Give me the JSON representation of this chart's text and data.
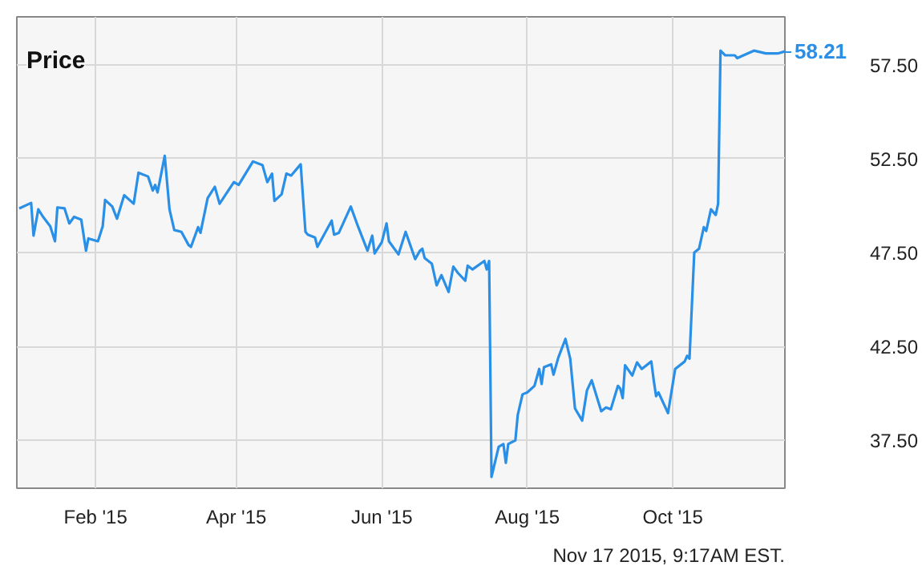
{
  "chart_data": {
    "type": "line",
    "title": "Price",
    "x": [
      "2014-12-31",
      "2015-01-05",
      "2015-01-06",
      "2015-01-08",
      "2015-01-10",
      "2015-01-13",
      "2015-01-15",
      "2015-01-16",
      "2015-01-19",
      "2015-01-21",
      "2015-01-23",
      "2015-01-26",
      "2015-01-28",
      "2015-01-29",
      "2015-02-02",
      "2015-02-04",
      "2015-02-05",
      "2015-02-08",
      "2015-02-10",
      "2015-02-13",
      "2015-02-17",
      "2015-02-19",
      "2015-02-23",
      "2015-02-25",
      "2015-02-26",
      "2015-02-27",
      "2015-03-02",
      "2015-03-04",
      "2015-03-06",
      "2015-03-09",
      "2015-03-12",
      "2015-03-13",
      "2015-03-16",
      "2015-03-17",
      "2015-03-20",
      "2015-03-23",
      "2015-03-25",
      "2015-03-31",
      "2015-04-02",
      "2015-04-08",
      "2015-04-12",
      "2015-04-14",
      "2015-04-16",
      "2015-04-17",
      "2015-04-20",
      "2015-04-22",
      "2015-04-24",
      "2015-04-28",
      "2015-04-30",
      "2015-05-01",
      "2015-05-04",
      "2015-05-05",
      "2015-05-11",
      "2015-05-12",
      "2015-05-14",
      "2015-05-19",
      "2015-05-22",
      "2015-05-26",
      "2015-05-28",
      "2015-05-29",
      "2015-06-01",
      "2015-06-03",
      "2015-06-04",
      "2015-06-08",
      "2015-06-11",
      "2015-06-15",
      "2015-06-17",
      "2015-06-18",
      "2015-06-19",
      "2015-06-22",
      "2015-06-24",
      "2015-06-26",
      "2015-06-29",
      "2015-07-01",
      "2015-07-03",
      "2015-07-06",
      "2015-07-07",
      "2015-07-09",
      "2015-07-14",
      "2015-07-15",
      "2015-07-16",
      "2015-07-17",
      "2015-07-20",
      "2015-07-22",
      "2015-07-23",
      "2015-07-24",
      "2015-07-27",
      "2015-07-28",
      "2015-07-30",
      "2015-08-01",
      "2015-08-04",
      "2015-08-06",
      "2015-08-07",
      "2015-08-08",
      "2015-08-11",
      "2015-08-12",
      "2015-08-14",
      "2015-08-17",
      "2015-08-19",
      "2015-08-21",
      "2015-08-24",
      "2015-08-26",
      "2015-08-28",
      "2015-09-01",
      "2015-09-03",
      "2015-09-05",
      "2015-09-08",
      "2015-09-09",
      "2015-09-10",
      "2015-09-11",
      "2015-09-14",
      "2015-09-16",
      "2015-09-18",
      "2015-09-22",
      "2015-09-23",
      "2015-09-24",
      "2015-09-25",
      "2015-09-29",
      "2015-10-02",
      "2015-10-06",
      "2015-10-07",
      "2015-10-08",
      "2015-10-10",
      "2015-10-12",
      "2015-10-14",
      "2015-10-15",
      "2015-10-17",
      "2015-10-19",
      "2015-10-20",
      "2015-10-21",
      "2015-10-23",
      "2015-10-27",
      "2015-10-28",
      "2015-11-04",
      "2015-11-09",
      "2015-11-14",
      "2015-11-17"
    ],
    "series": [
      {
        "color": "#2a8fe6",
        "values": [
          49.85,
          50.14,
          48.4,
          49.8,
          49.4,
          48.9,
          48.1,
          49.9,
          49.85,
          49.05,
          49.4,
          49.25,
          47.6,
          48.25,
          48.1,
          48.9,
          50.3,
          49.95,
          49.3,
          50.55,
          50.1,
          51.75,
          51.55,
          50.8,
          51.1,
          50.7,
          52.65,
          49.8,
          48.7,
          48.6,
          47.9,
          47.8,
          48.85,
          48.55,
          50.4,
          51.0,
          50.1,
          51.25,
          51.1,
          52.35,
          52.15,
          51.25,
          51.7,
          50.25,
          50.6,
          51.7,
          51.6,
          52.2,
          48.6,
          48.45,
          48.3,
          47.8,
          49.2,
          48.45,
          48.55,
          49.95,
          48.9,
          47.6,
          48.4,
          47.45,
          48.05,
          49.05,
          48.1,
          47.4,
          48.6,
          47.15,
          47.6,
          47.7,
          47.2,
          46.9,
          45.75,
          46.3,
          45.4,
          46.75,
          46.4,
          46.0,
          46.8,
          46.6,
          47.05,
          46.6,
          47.05,
          35.55,
          37.15,
          37.3,
          36.3,
          37.3,
          37.5,
          38.85,
          39.95,
          40.05,
          40.4,
          41.3,
          40.5,
          41.4,
          41.55,
          41.0,
          41.9,
          42.9,
          41.85,
          39.2,
          38.55,
          40.15,
          40.7,
          39.05,
          39.25,
          39.15,
          40.4,
          40.25,
          39.75,
          41.5,
          40.95,
          41.65,
          41.3,
          41.7,
          40.7,
          39.85,
          40.05,
          38.95,
          41.3,
          41.7,
          42.0,
          41.85,
          47.5,
          47.7,
          48.85,
          48.65,
          49.8,
          49.5,
          50.1,
          58.25,
          58.0,
          58.0,
          57.85,
          58.25,
          58.1,
          58.1,
          58.21
        ]
      }
    ],
    "xlim": [
      "2014-12-30",
      "2015-11-17"
    ],
    "xticks": [
      {
        "value": "2015-02-01",
        "label": "Feb '15"
      },
      {
        "value": "2015-04-01",
        "label": "Apr '15"
      },
      {
        "value": "2015-06-01",
        "label": "Jun '15"
      },
      {
        "value": "2015-08-01",
        "label": "Aug '15"
      },
      {
        "value": "2015-10-01",
        "label": "Oct '15"
      }
    ],
    "ylim": [
      34.95,
      60.05
    ],
    "yticks": [
      {
        "value": 37.5,
        "label": "37.50"
      },
      {
        "value": 42.5,
        "label": "42.50"
      },
      {
        "value": 47.5,
        "label": "47.50"
      },
      {
        "value": 52.5,
        "label": "52.50"
      },
      {
        "value": 57.5,
        "label": "57.50"
      }
    ],
    "grid": true,
    "annotations": [
      {
        "text": "58.21",
        "x": "2015-11-17",
        "y": 58.21
      },
      "Nov 17 2015, 9:17AM EST."
    ]
  }
}
